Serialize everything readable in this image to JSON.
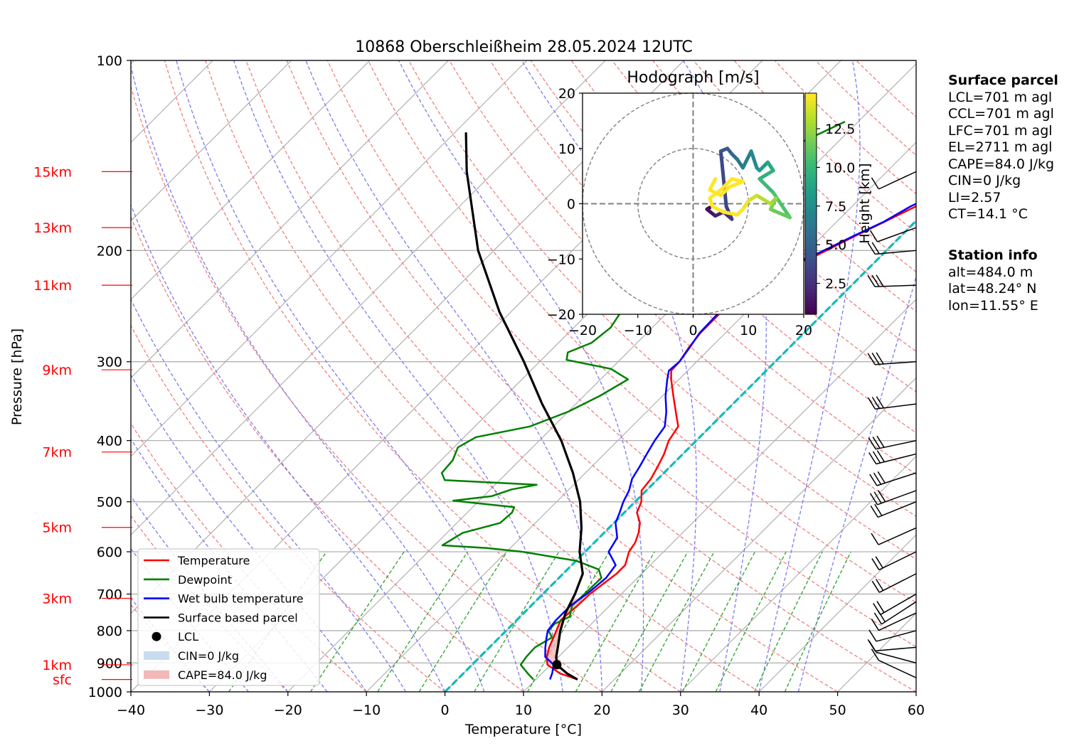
{
  "chart_data": {
    "type": "skew-t",
    "title": "10868 Oberschleißheim 28.05.2024 12UTC",
    "xlabel": "Temperature [°C]",
    "ylabel": "Pressure [hPa]",
    "xlim": [
      -40,
      60
    ],
    "ylim_hpa": [
      1000,
      100
    ],
    "x_ticks": [
      "−40",
      "−30",
      "−20",
      "−10",
      "0",
      "10",
      "20",
      "30",
      "40",
      "50",
      "60"
    ],
    "x_tick_values": [
      -40,
      -30,
      -20,
      -10,
      0,
      10,
      20,
      30,
      40,
      50,
      60
    ],
    "y_ticks": [
      "100",
      "200",
      "300",
      "400",
      "500",
      "600",
      "700",
      "800",
      "900",
      "1000"
    ],
    "y_tick_values": [
      100,
      200,
      300,
      400,
      500,
      600,
      700,
      800,
      900,
      1000
    ],
    "height_labels": [
      {
        "text": "15km",
        "p": 150
      },
      {
        "text": "13km",
        "p": 184
      },
      {
        "text": "11km",
        "p": 227
      },
      {
        "text": "9km",
        "p": 309
      },
      {
        "text": "7km",
        "p": 417
      },
      {
        "text": "5km",
        "p": 549
      },
      {
        "text": "3km",
        "p": 711
      },
      {
        "text": "1km",
        "p": 906
      },
      {
        "text": "sfc",
        "p": 956
      }
    ],
    "legend": {
      "placement": "lower-left",
      "items": [
        "Temperature",
        "Dewpoint",
        "Wet bulb temperature",
        "Surface based parcel",
        "LCL",
        "CIN=0 J/kg",
        "CAPE=84.0 J/kg"
      ]
    },
    "colors": {
      "temperature": "#ff0000",
      "dewpoint": "#008000",
      "wetbulb": "#0000ff",
      "parcel": "#000000",
      "cape": "#f2b8b8",
      "cin": "#c8dcee",
      "height_label": "#ff0000",
      "freezing_line": "#00bfbf"
    },
    "series": [
      {
        "name": "Temperature",
        "points": [
          [
            956,
            15.3
          ],
          [
            935,
            12.3
          ],
          [
            906,
            9.6
          ],
          [
            880,
            8.5
          ],
          [
            850,
            7.6
          ],
          [
            800,
            6.4
          ],
          [
            770,
            5.6
          ],
          [
            730,
            5.9
          ],
          [
            700,
            6.0
          ],
          [
            650,
            6.8
          ],
          [
            630,
            6.8
          ],
          [
            600,
            5.6
          ],
          [
            580,
            5.2
          ],
          [
            560,
            4.4
          ],
          [
            540,
            3.3
          ],
          [
            520,
            1.6
          ],
          [
            500,
            0.8
          ],
          [
            480,
            -0.6
          ],
          [
            460,
            -0.9
          ],
          [
            440,
            -1.6
          ],
          [
            420,
            -2.4
          ],
          [
            400,
            -3.5
          ],
          [
            380,
            -4.1
          ],
          [
            360,
            -6.3
          ],
          [
            340,
            -8.6
          ],
          [
            320,
            -11.0
          ],
          [
            310,
            -12.1
          ],
          [
            300,
            -12.2
          ],
          [
            285,
            -12.8
          ],
          [
            270,
            -13.2
          ],
          [
            255,
            -13.2
          ],
          [
            240,
            -13.3
          ],
          [
            225,
            -12.6
          ],
          [
            215,
            -11.4
          ],
          [
            205,
            -8.5
          ],
          [
            198,
            -7.3
          ],
          [
            190,
            -5.9
          ],
          [
            180,
            -3.9
          ],
          [
            170,
            -1.8
          ],
          [
            160,
            0.4
          ],
          [
            150,
            2.8
          ],
          [
            140,
            5.2
          ],
          [
            130,
            6.9
          ],
          [
            125,
            9.9
          ]
        ]
      },
      {
        "name": "Dewpoint",
        "points": [
          [
            956,
            9.7
          ],
          [
            935,
            8.2
          ],
          [
            906,
            6.2
          ],
          [
            880,
            5.9
          ],
          [
            850,
            5.8
          ],
          [
            820,
            6.7
          ],
          [
            800,
            5.4
          ],
          [
            780,
            5.3
          ],
          [
            760,
            6.3
          ],
          [
            730,
            5.2
          ],
          [
            700,
            5.3
          ],
          [
            660,
            5.4
          ],
          [
            640,
            4.0
          ],
          [
            620,
            0.0
          ],
          [
            600,
            -8.0
          ],
          [
            592,
            -13.0
          ],
          [
            586,
            -19.0
          ],
          [
            560,
            -18.0
          ],
          [
            540,
            -14.5
          ],
          [
            520,
            -14.3
          ],
          [
            510,
            -14.7
          ],
          [
            498,
            -23.3
          ],
          [
            490,
            -19.0
          ],
          [
            478,
            -17.3
          ],
          [
            470,
            -14.7
          ],
          [
            462,
            -27.0
          ],
          [
            450,
            -28.3
          ],
          [
            430,
            -28.5
          ],
          [
            410,
            -29.5
          ],
          [
            395,
            -28.5
          ],
          [
            380,
            -23.0
          ],
          [
            360,
            -20.0
          ],
          [
            340,
            -18.0
          ],
          [
            320,
            -16.5
          ],
          [
            308,
            -20.0
          ],
          [
            298,
            -26.8
          ],
          [
            290,
            -27.6
          ],
          [
            280,
            -25.8
          ],
          [
            265,
            -25.3
          ],
          [
            250,
            -26.0
          ],
          [
            235,
            -26.4
          ],
          [
            225,
            -31.4
          ],
          [
            218,
            -30.0
          ],
          [
            208,
            -31.0
          ],
          [
            202,
            -25.0
          ],
          [
            195,
            -27.6
          ],
          [
            185,
            -29.5
          ],
          [
            175,
            -29.6
          ],
          [
            165,
            -29.8
          ],
          [
            155,
            -28.4
          ],
          [
            145,
            -26.9
          ],
          [
            135,
            -24.7
          ],
          [
            125,
            -21.7
          ]
        ]
      },
      {
        "name": "Wet bulb temperature",
        "points": [
          [
            956,
            11.8
          ],
          [
            935,
            11.3
          ],
          [
            906,
            10.4
          ],
          [
            880,
            8.3
          ],
          [
            850,
            7.1
          ],
          [
            820,
            6.0
          ],
          [
            800,
            5.3
          ],
          [
            770,
            5.0
          ],
          [
            730,
            5.0
          ],
          [
            700,
            5.6
          ],
          [
            660,
            6.0
          ],
          [
            630,
            5.6
          ],
          [
            600,
            3.0
          ],
          [
            570,
            2.3
          ],
          [
            540,
            0.2
          ],
          [
            520,
            -0.6
          ],
          [
            500,
            -1.5
          ],
          [
            480,
            -2.2
          ],
          [
            460,
            -3.3
          ],
          [
            440,
            -3.9
          ],
          [
            420,
            -4.6
          ],
          [
            400,
            -5.3
          ],
          [
            380,
            -5.8
          ],
          [
            360,
            -7.5
          ],
          [
            340,
            -9.6
          ],
          [
            320,
            -11.5
          ],
          [
            310,
            -12.4
          ],
          [
            300,
            -12.2
          ],
          [
            285,
            -12.7
          ],
          [
            270,
            -13.3
          ],
          [
            255,
            -13.4
          ],
          [
            240,
            -13.4
          ],
          [
            225,
            -13.2
          ],
          [
            215,
            -12.3
          ],
          [
            205,
            -8.9
          ],
          [
            198,
            -7.6
          ],
          [
            190,
            -6.1
          ],
          [
            180,
            -4.0
          ],
          [
            170,
            -2.5
          ],
          [
            160,
            0.1
          ],
          [
            150,
            2.0
          ],
          [
            140,
            4.0
          ],
          [
            130,
            6.9
          ],
          [
            125,
            9.6
          ]
        ]
      },
      {
        "name": "Surface based parcel",
        "points": [
          [
            956,
            15.3
          ],
          [
            935,
            13.2
          ],
          [
            906,
            10.8
          ],
          [
            880,
            9.7
          ],
          [
            850,
            8.7
          ],
          [
            800,
            6.9
          ],
          [
            750,
            5.3
          ],
          [
            700,
            4.1
          ],
          [
            650,
            2.5
          ],
          [
            600,
            -0.7
          ],
          [
            550,
            -3.5
          ],
          [
            500,
            -7.0
          ],
          [
            450,
            -11.6
          ],
          [
            400,
            -17.2
          ],
          [
            350,
            -24.3
          ],
          [
            300,
            -32.0
          ],
          [
            250,
            -41.5
          ],
          [
            200,
            -52.0
          ],
          [
            150,
            -63.5
          ],
          [
            130,
            -68.6
          ]
        ]
      }
    ],
    "lcl": {
      "p": 906,
      "t": 10.8
    },
    "cape_region": {
      "p_bottom": 906,
      "p_top": 711
    },
    "hodograph": {
      "title": "Hodograph [m/s]",
      "xlim": [
        -20,
        20
      ],
      "ylim": [
        -20,
        20
      ],
      "ticks": [
        "−20",
        "−10",
        "0",
        "10",
        "20"
      ],
      "tick_values": [
        -20,
        -10,
        0,
        10,
        20
      ],
      "rings": [
        10,
        20
      ],
      "colorbar_label": "Height [km]",
      "colorbar_ticks": [
        "2.5",
        "5.0",
        "7.5",
        "10.0",
        "12.5"
      ],
      "colorbar_tick_values": [
        2.5,
        5.0,
        7.5,
        10.0,
        12.5
      ],
      "colorbar_range": [
        0.5,
        14.8
      ],
      "trace": [
        [
          0.6,
          3.0,
          -0.7
        ],
        [
          1.2,
          2.5,
          -1.0
        ],
        [
          1.8,
          4.0,
          -2.2
        ],
        [
          2.4,
          5.5,
          -1.5
        ],
        [
          3.0,
          7.0,
          -2.8
        ],
        [
          3.6,
          6.0,
          -0.5
        ],
        [
          4.2,
          5.0,
          9.5
        ],
        [
          4.8,
          6.2,
          10.0
        ],
        [
          5.4,
          7.0,
          9.0
        ],
        [
          6.0,
          8.0,
          8.0
        ],
        [
          6.6,
          9.0,
          6.5
        ],
        [
          7.2,
          10.5,
          9.5
        ],
        [
          7.8,
          11.5,
          6.5
        ],
        [
          8.4,
          12.0,
          6.0
        ],
        [
          9.0,
          13.5,
          7.5
        ],
        [
          9.6,
          14.5,
          6.0
        ],
        [
          10.2,
          12.0,
          4.5
        ],
        [
          10.8,
          14.5,
          2.0
        ],
        [
          11.4,
          17.5,
          -2.5
        ],
        [
          12.0,
          14.0,
          -1.0
        ],
        [
          12.6,
          15.0,
          1.0
        ],
        [
          13.2,
          14.0,
          0.0
        ],
        [
          13.8,
          11.5,
          1.5
        ],
        [
          14.4,
          10.0,
          0.5
        ],
        [
          15.0,
          9.0,
          -1.0
        ],
        [
          15.6,
          8.0,
          -2.0
        ],
        [
          16.2,
          5.5,
          -1.5
        ],
        [
          16.8,
          3.5,
          -0.5
        ],
        [
          17.4,
          3.0,
          1.0
        ],
        [
          18.0,
          5.0,
          2.5
        ],
        [
          18.6,
          7.0,
          4.5
        ],
        [
          19.2,
          9.0,
          4.0
        ],
        [
          19.8,
          6.5,
          3.0
        ],
        [
          20.4,
          5.0,
          1.5
        ],
        [
          21.0,
          3.0,
          2.5
        ],
        [
          21.6,
          4.0,
          4.5
        ]
      ]
    }
  },
  "side": {
    "parcel_title": "Surface parcel",
    "parcel_lines": [
      "LCL=701 m agl",
      "CCL=701 m agl",
      "LFC=701 m agl",
      "EL=2711 m agl",
      "CAPE=84.0 J/kg",
      "CIN=0 J/kg",
      "LI=2.57",
      "CT=14.1 °C"
    ],
    "station_title": "Station info",
    "station_lines": [
      "alt=484.0 m",
      "lat=48.24° N",
      "lon=11.55° E"
    ]
  }
}
